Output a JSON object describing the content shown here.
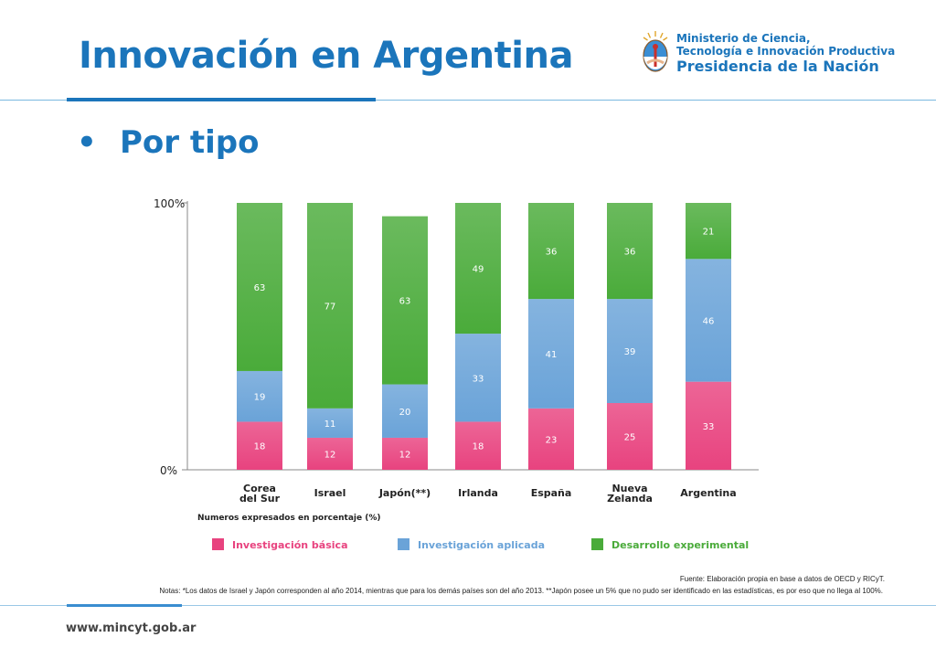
{
  "page": {
    "title": "Innovación en Argentina",
    "bullet": "•",
    "subtitle": "Por tipo",
    "url": "www.mincyt.gob.ar"
  },
  "logo": {
    "line1": "Ministerio de Ciencia,",
    "line2": "Tecnología e Innovación Productiva",
    "line3": "Presidencia de la Nación",
    "icon": "argentina-coat-of-arms-icon"
  },
  "notes": {
    "source": "Fuente: Elaboración propia en base a datos de OECD y RICyT.",
    "main": "Notas: *Los datos de Israel y Japón corresponden al año 2014, mientras que para los demás países son del año 2013. **Japón posee un 5% que no pudo ser identificado en las estadísticas, es por eso que no llega al 100%."
  },
  "chart_data": {
    "type": "bar",
    "stacked": true,
    "categories": [
      "Corea del Sur",
      "Israel",
      "Japón(**)",
      "Irlanda",
      "España",
      "Nueva Zelanda",
      "Argentina"
    ],
    "category_lines": [
      [
        "Corea",
        "del Sur"
      ],
      [
        "Israel"
      ],
      [
        "Japón(**)"
      ],
      [
        "Irlanda"
      ],
      [
        "España"
      ],
      [
        "Nueva",
        "Zelanda"
      ],
      [
        "Argentina"
      ]
    ],
    "series": [
      {
        "name": "Investigación básica",
        "values": [
          18,
          12,
          12,
          18,
          23,
          25,
          33
        ],
        "color": "#e8437f"
      },
      {
        "name": "Investigación aplicada",
        "values": [
          19,
          11,
          20,
          33,
          41,
          39,
          46
        ],
        "color": "#6aa3d8"
      },
      {
        "name": "Desarrollo experimental",
        "values": [
          63,
          77,
          63,
          49,
          36,
          36,
          21
        ],
        "color": "#4aab3a"
      }
    ],
    "ylim": [
      0,
      100
    ],
    "yticks": [
      "0%",
      "100%"
    ],
    "units_note": "Numeros expresados en porcentaje (%)",
    "legend_position": "bottom"
  }
}
